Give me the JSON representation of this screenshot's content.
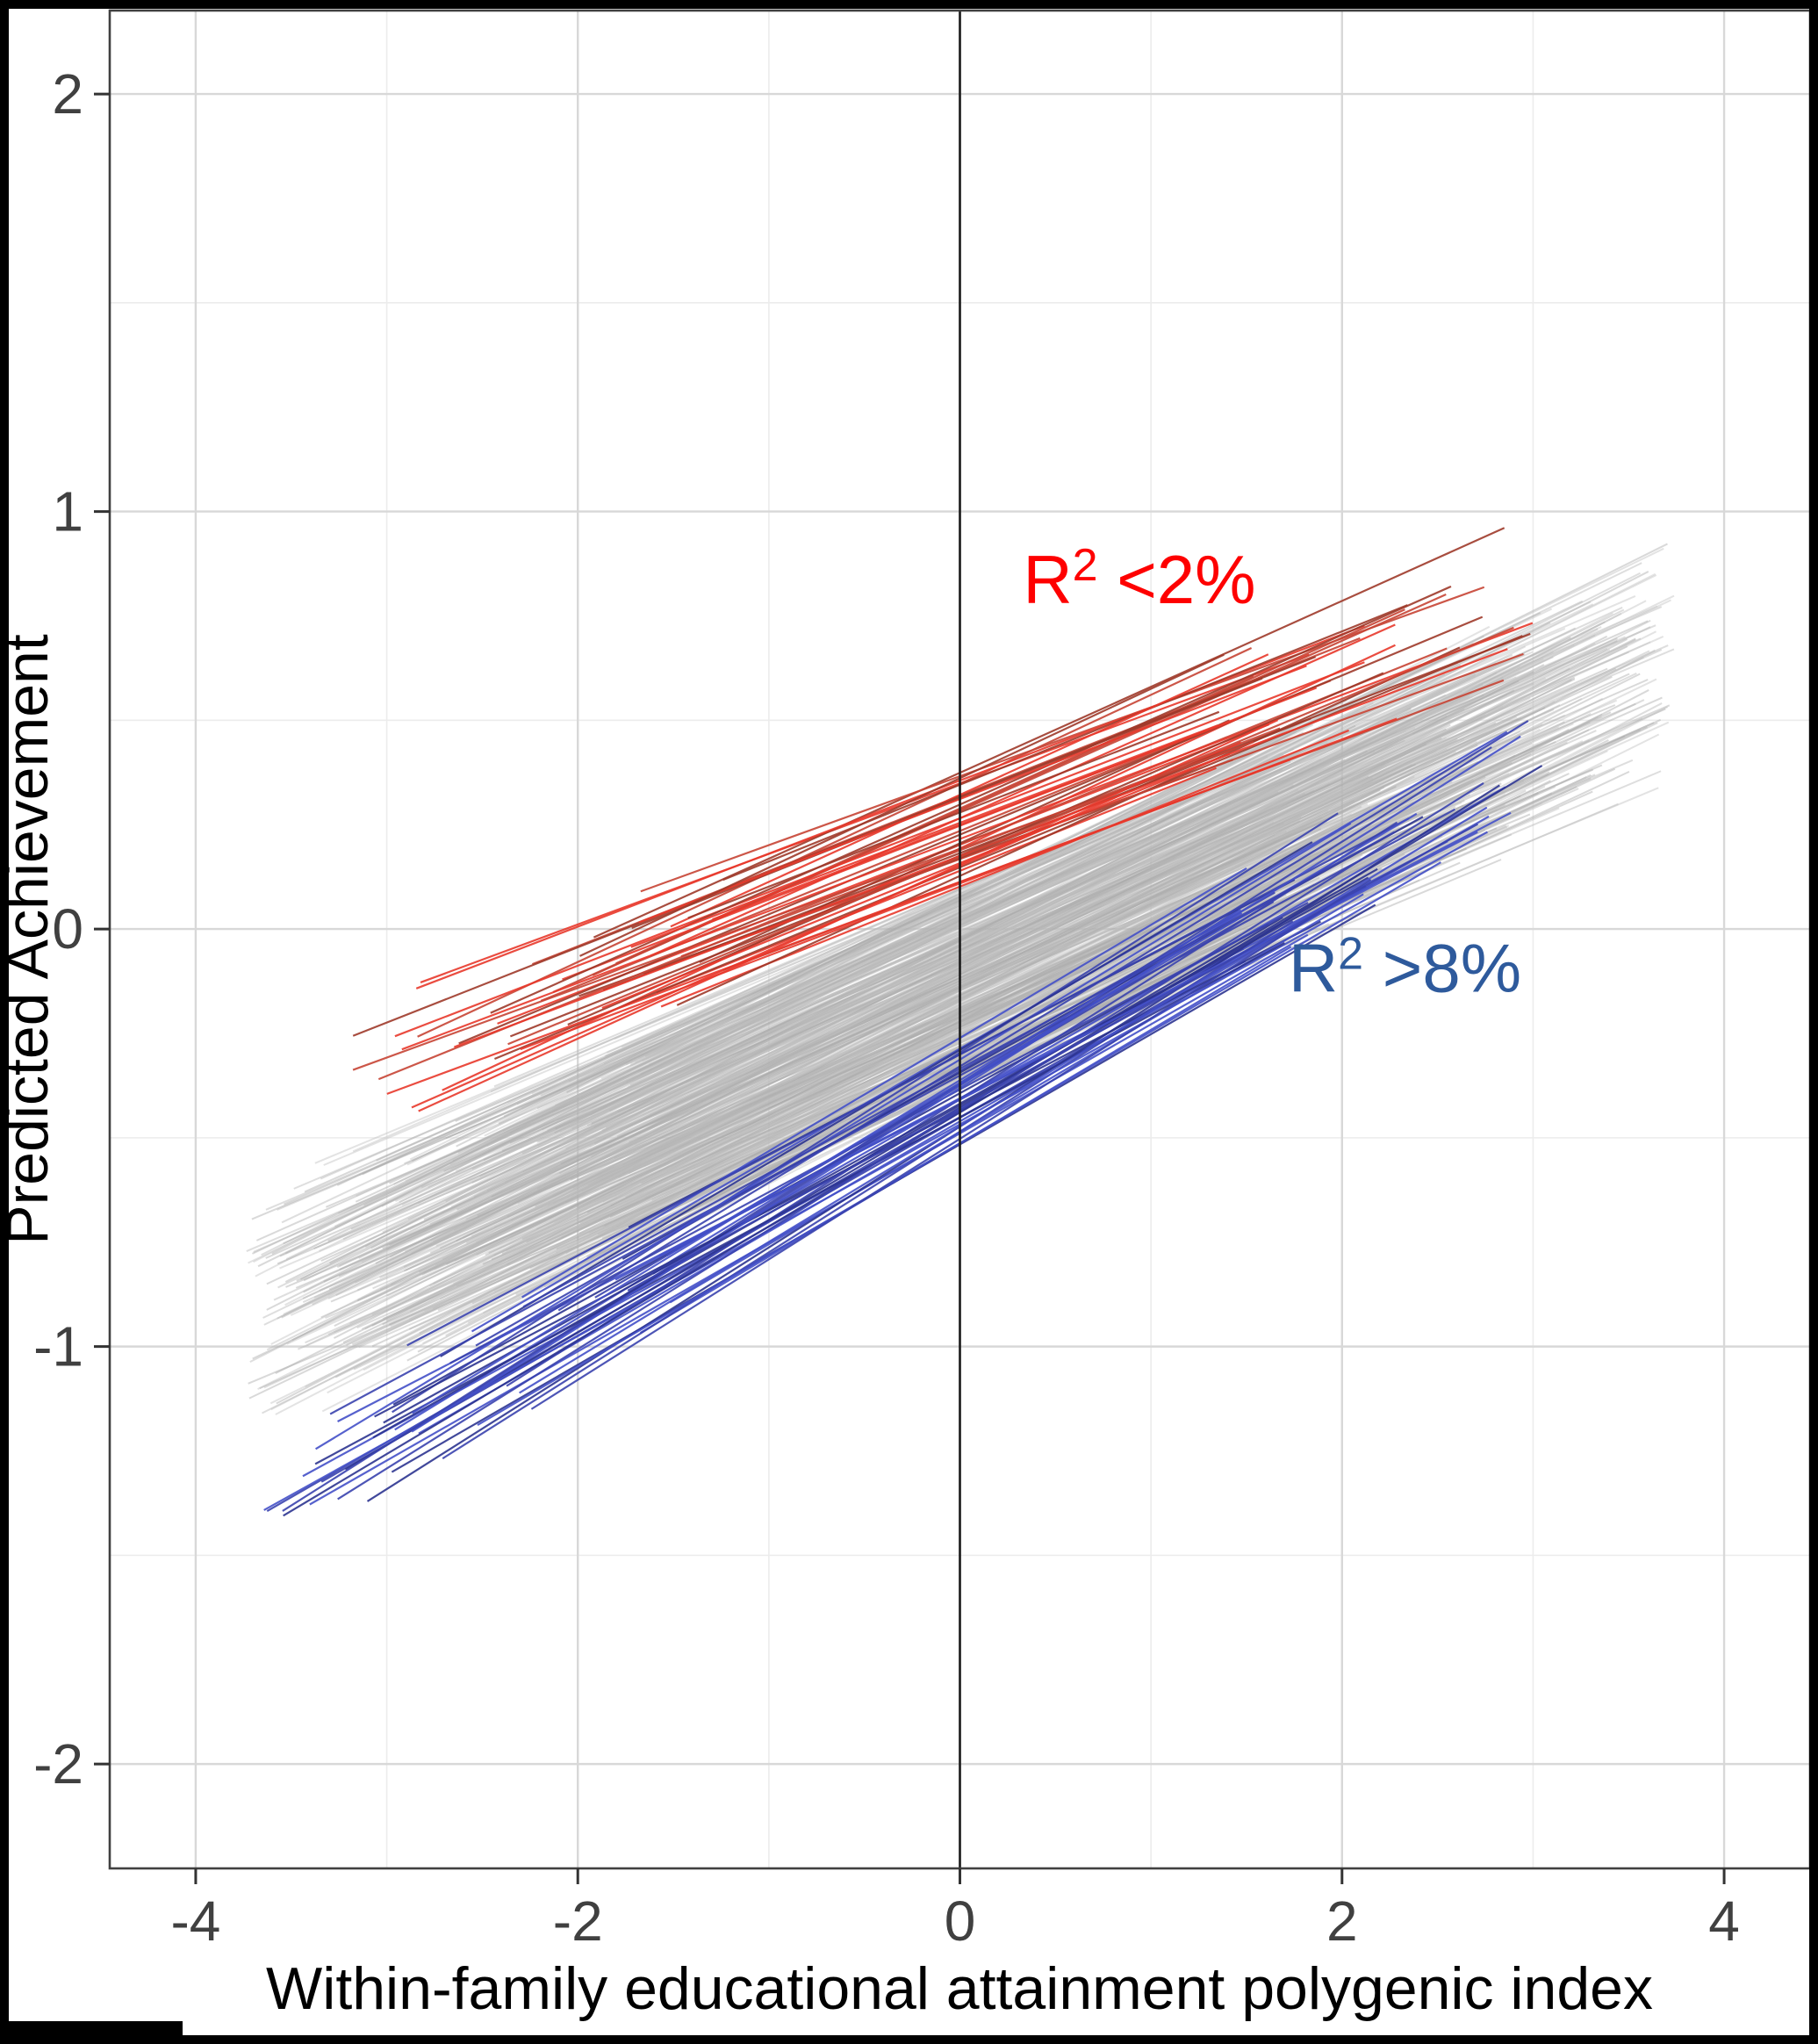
{
  "figure": {
    "title": "",
    "frame_color": "#000000",
    "background": "#ffffff"
  },
  "chart_data": {
    "type": "line",
    "title": "",
    "xlabel": "Within-family educational attainment polygenic index",
    "ylabel": "Predicted Achievement",
    "xlim": [
      -4.45,
      4.45
    ],
    "ylim": [
      -2.25,
      2.2
    ],
    "x_ticks": [
      -4,
      -2,
      0,
      2,
      4
    ],
    "y_ticks": [
      2,
      1,
      0,
      -1,
      -2
    ],
    "x_minor_ticks": [
      -3,
      -1,
      1,
      3
    ],
    "y_minor_ticks": [
      -1.5,
      -0.5,
      0.5,
      1.5
    ],
    "grid": true,
    "legend_position": "none",
    "vline_x": 0,
    "vline_color": "#1a1a1a",
    "panel_border_color": "#404040",
    "grid_major_color": "#d8d8d8",
    "grid_minor_color": "#ececec",
    "tick_label_color": "#404040",
    "axis_title_color": "#000000",
    "annotations": [
      {
        "id": "red-r2-label",
        "text": "R² <2%",
        "prefix": "R",
        "sup": "2",
        "suffix": " <2%",
        "x": 0.33,
        "y": 0.78,
        "color": "#fe0000"
      },
      {
        "id": "blue-r2-label",
        "text": "R² >8%",
        "prefix": "R",
        "sup": "2",
        "suffix": " >8%",
        "x": 1.72,
        "y": -0.15,
        "color": "#2e5a9c"
      }
    ],
    "seed": 1042,
    "series_groups": [
      {
        "name": "sibling-slopes-mid-r2-gray",
        "legend": "individual regression slopes (typical R², gray)",
        "count": 420,
        "z": 1,
        "colors": [
          "#b5b5b5",
          "#ababab",
          "#c0c0c0"
        ],
        "opacity": 0.45,
        "stroke_width": 2.0,
        "slope_range": [
          0.19,
          0.238
        ],
        "intercept_range": [
          -0.38,
          0.1
        ],
        "x_start_range": [
          -3.75,
          -1.6
        ],
        "x_end_range": [
          1.6,
          3.75
        ]
      },
      {
        "name": "high-r2-slopes-blue",
        "legend": "R² >8% (blue slopes)",
        "count": 48,
        "z": 2,
        "colors": [
          "#4450c8",
          "#3a43ae",
          "#2c3490"
        ],
        "opacity": 0.9,
        "stroke_width": 2.2,
        "slope_range": [
          0.235,
          0.29
        ],
        "intercept_range": [
          -0.52,
          -0.26
        ],
        "x_start_range": [
          -3.65,
          -1.5
        ],
        "x_end_range": [
          1.4,
          3.1
        ]
      },
      {
        "name": "low-r2-slopes-red",
        "legend": "R² <2% (red slopes)",
        "count": 48,
        "z": 3,
        "colors": [
          "#e8392b",
          "#c74434",
          "#9e3a2a"
        ],
        "opacity": 0.9,
        "stroke_width": 2.2,
        "slope_range": [
          0.165,
          0.215
        ],
        "intercept_range": [
          0.1,
          0.38
        ],
        "x_start_range": [
          -3.2,
          -1.2
        ],
        "x_end_range": [
          1.3,
          3.0
        ]
      }
    ]
  }
}
